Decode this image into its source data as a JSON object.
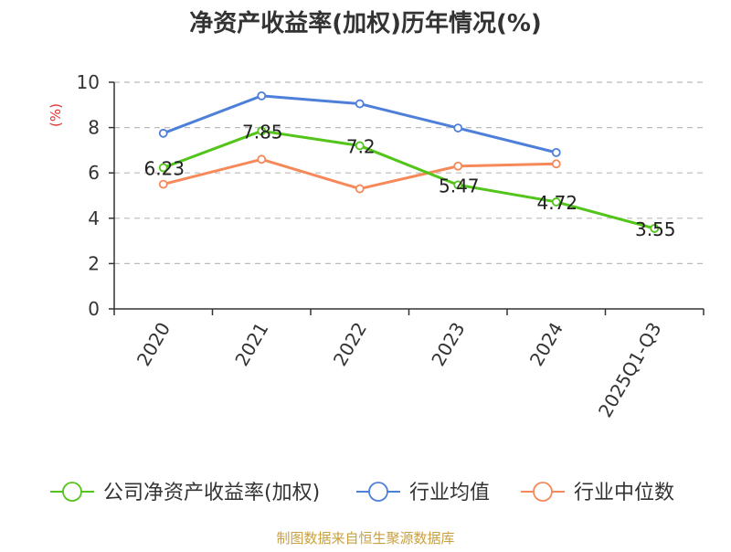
{
  "chart_data": {
    "type": "line",
    "title": "净资产收益率(加权)历年情况(%)",
    "ylabel": "(%)",
    "xlabel": "",
    "ylim": [
      0,
      10
    ],
    "yticks": [
      0,
      2,
      4,
      6,
      8,
      10
    ],
    "grid": true,
    "legend_position": "bottom",
    "categories": [
      "2020",
      "2021",
      "2022",
      "2023",
      "2024",
      "2025Q1-Q3"
    ],
    "series": [
      {
        "name": "公司净资产收益率(加权)",
        "color": "#52c41a",
        "values": [
          6.23,
          7.85,
          7.2,
          5.47,
          4.72,
          3.55
        ],
        "labels": [
          "6.23",
          "7.85",
          "7.2",
          "5.47",
          "4.72",
          "3.55"
        ]
      },
      {
        "name": "行业均值",
        "color": "#4e7fd9",
        "values": [
          7.75,
          9.4,
          9.05,
          7.98,
          6.9,
          null
        ]
      },
      {
        "name": "行业中位数",
        "color": "#f5895a",
        "values": [
          5.5,
          6.6,
          5.3,
          6.3,
          6.4,
          null
        ]
      }
    ]
  },
  "source": "制图数据来自恒生聚源数据库",
  "colors": {
    "title": "#333333",
    "axis": "#333333",
    "grid": "#bbbbbb",
    "ylabel": "#e03030",
    "source": "#c8a040"
  }
}
